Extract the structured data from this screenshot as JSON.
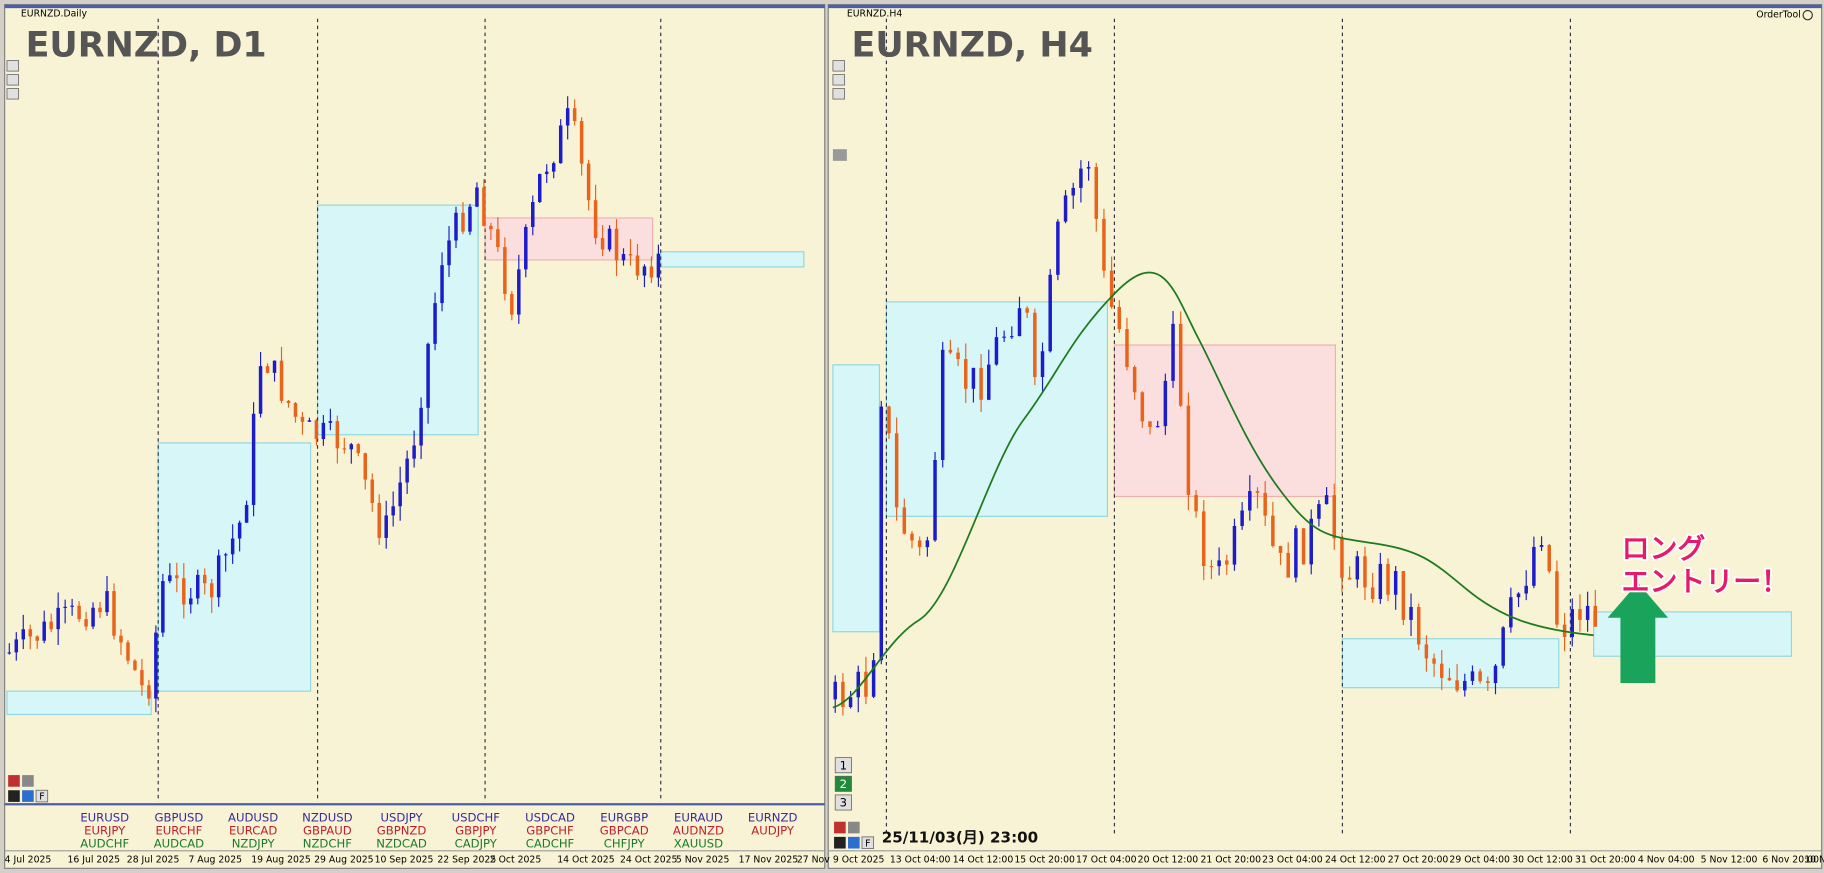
{
  "left_chart": {
    "window_title": "EURNZD.Daily",
    "symbol_label": "EURNZD, D1",
    "filter_button": "F",
    "x_axis_labels": [
      "4 Jul 2025",
      "16 Jul 2025",
      "28 Jul 2025",
      "7 Aug 2025",
      "19 Aug 2025",
      "29 Aug 2025",
      "10 Sep 2025",
      "22 Sep 2025",
      "2 Oct 2025",
      "14 Oct 2025",
      "24 Oct 2025",
      "5 Nov 2025",
      "17 Nov 2025",
      "27 Nov"
    ],
    "symbol_list": [
      [
        "EURUSD",
        "EURJPY",
        "AUDCHF"
      ],
      [
        "GBPUSD",
        "EURCHF",
        "AUDCAD"
      ],
      [
        "AUDUSD",
        "EURCAD",
        "NZDJPY"
      ],
      [
        "NZDUSD",
        "GBPAUD",
        "NZDCHF"
      ],
      [
        "USDJPY",
        "GBPNZD",
        "NZDCAD"
      ],
      [
        "USDCHF",
        "GBPJPY",
        "CADJPY"
      ],
      [
        "USDCAD",
        "GBPCHF",
        "CADCHF"
      ],
      [
        "EURGBP",
        "GBPCAD",
        "CHFJPY"
      ],
      [
        "EURAUD",
        "AUDNZD",
        "XAUUSD"
      ],
      [
        "EURNZD",
        "AUDJPY"
      ]
    ]
  },
  "right_chart": {
    "window_title": "EURNZD.H4",
    "symbol_label": "EURNZD, H4",
    "tool_label": "OrderTool",
    "filter_button": "F",
    "x_axis_labels": [
      "9 Oct 2025",
      "13 Oct 04:00",
      "14 Oct 12:00",
      "15 Oct 20:00",
      "17 Oct 04:00",
      "20 Oct 12:00",
      "21 Oct 20:00",
      "23 Oct 04:00",
      "24 Oct 12:00",
      "27 Oct 20:00",
      "29 Oct 04:00",
      "30 Oct 12:00",
      "31 Oct 20:00",
      "4 Nov 04:00",
      "5 Nov 12:00",
      "6 Nov 20:00",
      "10 N"
    ],
    "timestamp": "25/11/03(月) 23:00",
    "annotation": [
      "ロング",
      "エントリー！"
    ],
    "timeframe_buttons": [
      "1",
      "2",
      "3"
    ]
  }
}
